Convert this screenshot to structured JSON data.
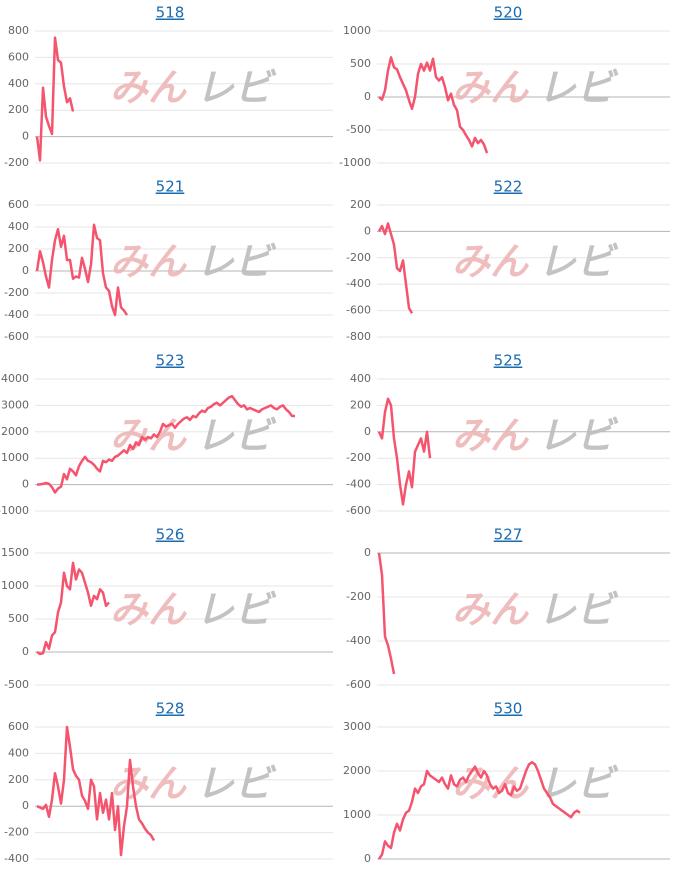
{
  "watermark": {
    "left": "みん",
    "right": "レビ"
  },
  "chart_data": [
    {
      "type": "line",
      "title": "518",
      "color": "#f5546f",
      "ylim": [
        -200,
        800
      ],
      "yticks": [
        800,
        600,
        400,
        200,
        0,
        -200
      ],
      "values": [
        0,
        -180,
        370,
        150,
        80,
        20,
        750,
        580,
        560,
        380,
        260,
        290,
        190
      ]
    },
    {
      "type": "line",
      "title": "520",
      "color": "#f5546f",
      "ylim": [
        -1000,
        1000
      ],
      "yticks": [
        1000,
        500,
        0,
        -500,
        -1000
      ],
      "values": [
        0,
        -40,
        100,
        400,
        600,
        450,
        420,
        300,
        200,
        100,
        -50,
        -180,
        0,
        350,
        500,
        400,
        520,
        400,
        580,
        300,
        250,
        300,
        150,
        -50,
        50,
        -120,
        -200,
        -450,
        -500,
        -580,
        -650,
        -750,
        -620,
        -700,
        -650,
        -720,
        -850
      ]
    },
    {
      "type": "line",
      "title": "521",
      "color": "#f5546f",
      "ylim": [
        -600,
        600
      ],
      "yticks": [
        600,
        400,
        200,
        0,
        -200,
        -400,
        -600
      ],
      "values": [
        0,
        180,
        80,
        -50,
        -150,
        100,
        280,
        380,
        220,
        320,
        100,
        100,
        -70,
        -50,
        -60,
        120,
        20,
        -100,
        60,
        420,
        300,
        280,
        -20,
        -150,
        -180,
        -320,
        -400,
        -150,
        -330,
        -360,
        -400
      ]
    },
    {
      "type": "line",
      "title": "522",
      "color": "#f5546f",
      "ylim": [
        -800,
        200
      ],
      "yticks": [
        200,
        0,
        -200,
        -400,
        -600,
        -800
      ],
      "values": [
        0,
        40,
        -20,
        60,
        -20,
        -100,
        -280,
        -300,
        -220,
        -400,
        -580,
        -620
      ]
    },
    {
      "type": "line",
      "title": "523",
      "color": "#f5546f",
      "ylim": [
        -1000,
        4000
      ],
      "yticks": [
        4000,
        3000,
        2000,
        1000,
        0,
        -1000
      ],
      "values": [
        0,
        10,
        30,
        60,
        30,
        -100,
        -300,
        -150,
        -80,
        400,
        200,
        600,
        500,
        350,
        700,
        900,
        1050,
        900,
        850,
        750,
        600,
        500,
        900,
        850,
        950,
        900,
        1050,
        1100,
        1200,
        1300,
        1200,
        1500,
        1350,
        1600,
        1500,
        1800,
        1700,
        1800,
        1750,
        1900,
        1800,
        2000,
        2300,
        2200,
        2250,
        2300,
        2150,
        2300,
        2400,
        2500,
        2550,
        2450,
        2600,
        2550,
        2700,
        2800,
        2750,
        2900,
        2950,
        3050,
        3100,
        3000,
        3100,
        3200,
        3300,
        3350,
        3200,
        3050,
        2950,
        3000,
        2850,
        2900,
        2850,
        2800,
        2750,
        2850,
        2900,
        2950,
        3000,
        2900,
        2850,
        2950,
        3000,
        2850,
        2750,
        2600,
        2600
      ]
    },
    {
      "type": "line",
      "title": "525",
      "color": "#f5546f",
      "ylim": [
        -600,
        400
      ],
      "yticks": [
        400,
        200,
        0,
        -200,
        -400,
        -600
      ],
      "values": [
        0,
        -50,
        150,
        250,
        200,
        -50,
        -200,
        -400,
        -550,
        -400,
        -300,
        -420,
        -150,
        -100,
        -50,
        -150,
        0,
        -200
      ]
    },
    {
      "type": "line",
      "title": "526",
      "color": "#f5546f",
      "ylim": [
        -500,
        1500
      ],
      "yticks": [
        1500,
        1000,
        500,
        0,
        -500
      ],
      "values": [
        0,
        -30,
        -20,
        150,
        50,
        250,
        300,
        600,
        750,
        1200,
        1000,
        950,
        1350,
        1100,
        1250,
        1200,
        1050,
        900,
        700,
        850,
        800,
        950,
        900,
        700,
        750
      ]
    },
    {
      "type": "line",
      "title": "527",
      "color": "#f5546f",
      "ylim": [
        -600,
        0
      ],
      "yticks": [
        0,
        -200,
        -400,
        -600
      ],
      "values": [
        0,
        -100,
        -380,
        -420,
        -480,
        -550
      ]
    },
    {
      "type": "line",
      "title": "528",
      "color": "#f5546f",
      "ylim": [
        -400,
        600
      ],
      "yticks": [
        600,
        400,
        200,
        0,
        -200,
        -400
      ],
      "values": [
        0,
        -10,
        -20,
        10,
        -80,
        50,
        250,
        150,
        20,
        200,
        600,
        450,
        280,
        230,
        200,
        80,
        40,
        -20,
        200,
        150,
        -100,
        100,
        -50,
        50,
        -100,
        100,
        -180,
        0,
        -370,
        -150,
        0,
        350,
        150,
        0,
        -100,
        -130,
        -170,
        -200,
        -220,
        -260
      ]
    },
    {
      "type": "line",
      "title": "530",
      "color": "#f5546f",
      "ylim": [
        0,
        3000
      ],
      "yticks": [
        3000,
        2000,
        1000,
        0
      ],
      "values": [
        0,
        100,
        400,
        300,
        250,
        600,
        800,
        650,
        900,
        1050,
        1100,
        1300,
        1600,
        1500,
        1650,
        1700,
        2000,
        1900,
        1850,
        1800,
        1750,
        1850,
        1700,
        1600,
        1900,
        1700,
        1650,
        1800,
        1850,
        1750,
        1900,
        2000,
        2100,
        1950,
        1850,
        2000,
        1900,
        1700,
        1600,
        1650,
        1500,
        1550,
        1700,
        1500,
        1450,
        1650,
        1550,
        1600,
        1800,
        2000,
        2150,
        2200,
        2150,
        2000,
        1800,
        1600,
        1500,
        1400,
        1250,
        1200,
        1150,
        1100,
        1050,
        1000,
        950,
        1050,
        1100,
        1050
      ]
    }
  ]
}
